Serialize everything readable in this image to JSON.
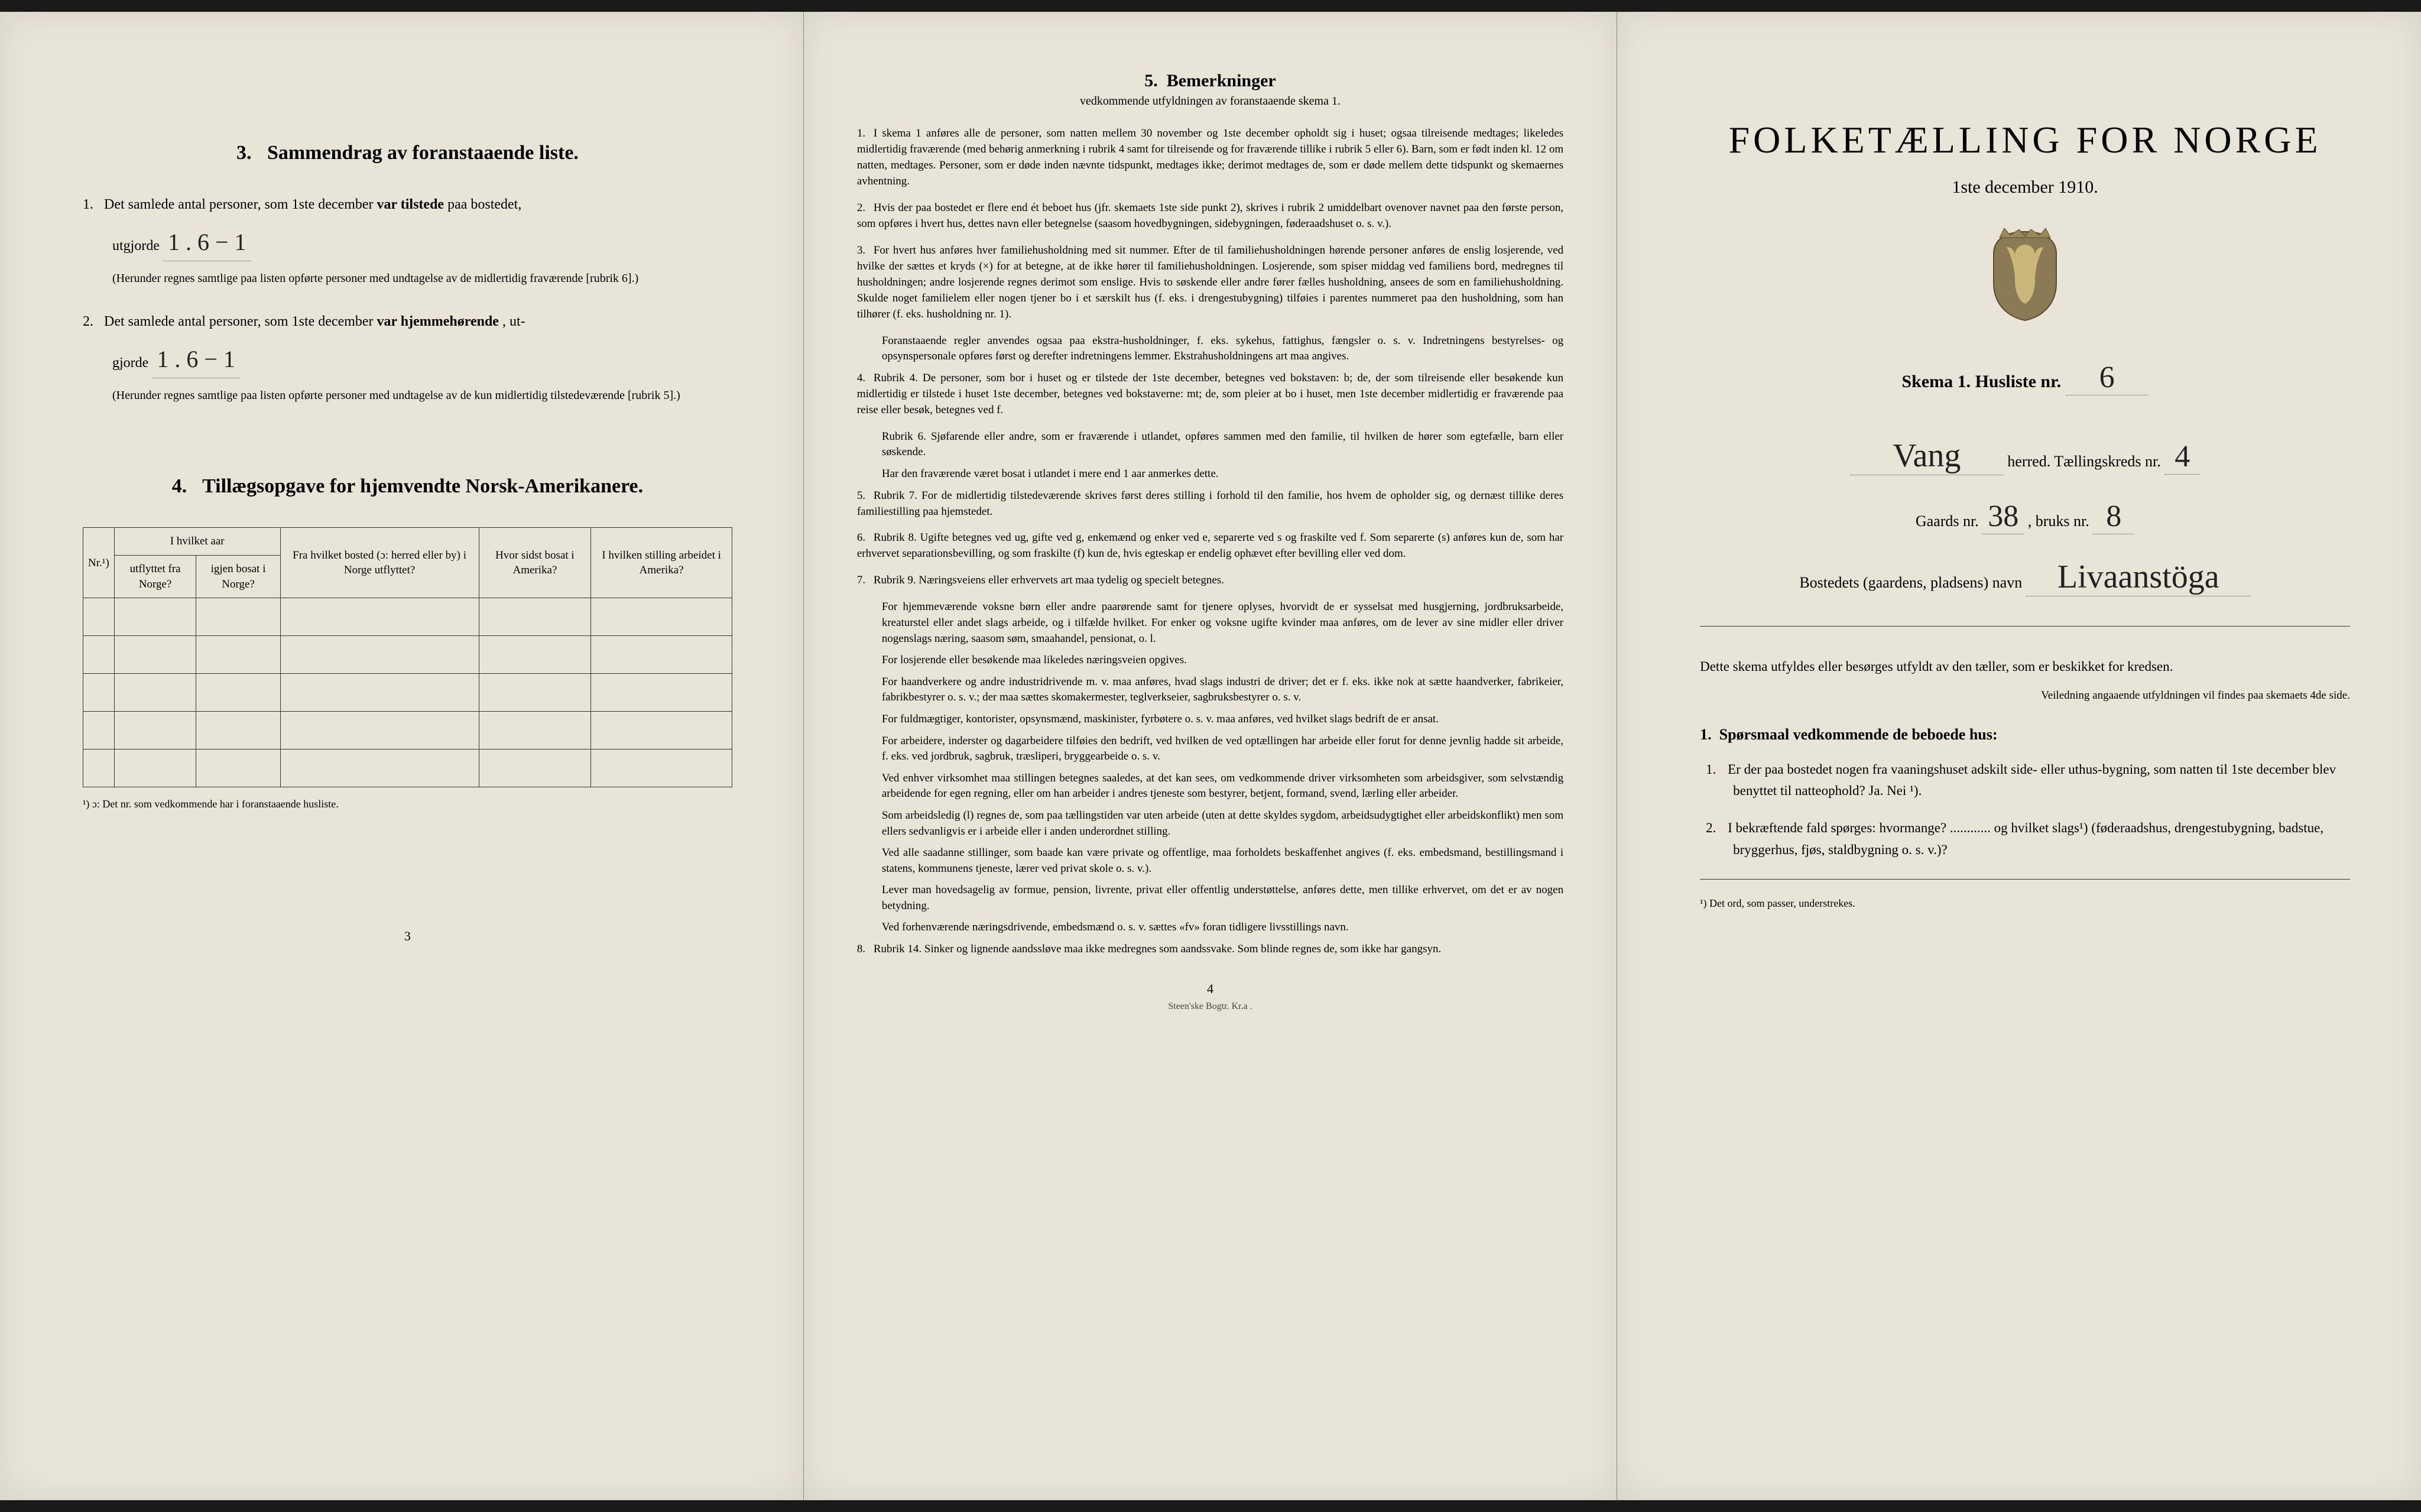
{
  "colors": {
    "paper": "#e8e4d8",
    "ink": "#1a1a1a",
    "border": "#333333",
    "frame": "#1a1a1a"
  },
  "left": {
    "sec3_title": "Sammendrag av foranstaaende liste.",
    "sec3_num": "3.",
    "item1_lead": "Det samlede antal personer, som 1ste december",
    "item1_bold": "var tilstede",
    "item1_tail": "paa bostedet,",
    "item1_utgjorde": "utgjorde",
    "item1_hand": "1 . 6 − 1",
    "item1_fine": "(Herunder regnes samtlige paa listen opførte personer med undtagelse av de midlertidig fraværende [rubrik 6].)",
    "item2_lead": "Det samlede antal personer, som 1ste december",
    "item2_bold": "var hjemmehørende",
    "item2_tail": ", ut-",
    "item2_utgjorde": "gjorde",
    "item2_hand": "1 . 6 − 1",
    "item2_fine": "(Herunder regnes samtlige paa listen opførte personer med undtagelse av de kun midlertidig tilstedeværende [rubrik 5].)",
    "sec4_title": "Tillægsopgave for hjemvendte Norsk-Amerikanere.",
    "sec4_num": "4.",
    "tbl": {
      "h_nr": "Nr.¹)",
      "h_aar": "I hvilket aar",
      "h_utflyttet": "utflyttet fra Norge?",
      "h_igjen": "igjen bosat i Norge?",
      "h_bosted": "Fra hvilket bosted (ɔ: herred eller by) i Norge utflyttet?",
      "h_sidst": "Hvor sidst bosat i Amerika?",
      "h_stilling": "I hvilken stilling arbeidet i Amerika?"
    },
    "tbl_foot": "¹) ɔ: Det nr. som vedkommende har i foranstaaende husliste.",
    "page_num": "3"
  },
  "mid": {
    "title_num": "5.",
    "title": "Bemerkninger",
    "sub": "vedkommende utfyldningen av foranstaaende skema 1.",
    "notes": [
      {
        "n": "1.",
        "t": "I skema 1 anføres alle de personer, som natten mellem 30 november og 1ste december opholdt sig i huset; ogsaa tilreisende medtages; likeledes midlertidig fraværende (med behørig anmerkning i rubrik 4 samt for tilreisende og for fraværende tillike i rubrik 5 eller 6). Barn, som er født inden kl. 12 om natten, medtages. Personer, som er døde inden nævnte tidspunkt, medtages ikke; derimot medtages de, som er døde mellem dette tidspunkt og skemaernes avhentning."
      },
      {
        "n": "2.",
        "t": "Hvis der paa bostedet er flere end ét beboet hus (jfr. skemaets 1ste side punkt 2), skrives i rubrik 2 umiddelbart ovenover navnet paa den første person, som opføres i hvert hus, dettes navn eller betegnelse (saasom hovedbygningen, sidebygningen, føderaadshuset o. s. v.)."
      },
      {
        "n": "3.",
        "t": "For hvert hus anføres hver familiehusholdning med sit nummer. Efter de til familiehusholdningen hørende personer anføres de enslig losjerende, ved hvilke der sættes et kryds (×) for at betegne, at de ikke hører til familiehusholdningen. Losjerende, som spiser middag ved familiens bord, medregnes til husholdningen; andre losjerende regnes derimot som enslige. Hvis to søskende eller andre fører fælles husholdning, ansees de som en familiehusholdning. Skulde noget familielem eller nogen tjener bo i et særskilt hus (f. eks. i drengestubygning) tilføies i parentes nummeret paa den husholdning, som han tilhører (f. eks. husholdning nr. 1)."
      },
      {
        "n": "",
        "t": "Foranstaaende regler anvendes ogsaa paa ekstra-husholdninger, f. eks. sykehus, fattighus, fængsler o. s. v. Indretningens bestyrelses- og opsynspersonale opføres først og derefter indretningens lemmer. Ekstrahusholdningens art maa angives."
      },
      {
        "n": "4.",
        "t": "Rubrik 4. De personer, som bor i huset og er tilstede der 1ste december, betegnes ved bokstaven: b; de, der som tilreisende eller besøkende kun midlertidig er tilstede i huset 1ste december, betegnes ved bokstaverne: mt; de, som pleier at bo i huset, men 1ste december midlertidig er fraværende paa reise eller besøk, betegnes ved f."
      },
      {
        "n": "",
        "t": "Rubrik 6. Sjøfarende eller andre, som er fraværende i utlandet, opføres sammen med den familie, til hvilken de hører som egtefælle, barn eller søskende."
      },
      {
        "n": "",
        "t": "Har den fraværende været bosat i utlandet i mere end 1 aar anmerkes dette."
      },
      {
        "n": "5.",
        "t": "Rubrik 7. For de midlertidig tilstedeværende skrives først deres stilling i forhold til den familie, hos hvem de opholder sig, og dernæst tillike deres familiestilling paa hjemstedet."
      },
      {
        "n": "6.",
        "t": "Rubrik 8. Ugifte betegnes ved ug, gifte ved g, enkemænd og enker ved e, separerte ved s og fraskilte ved f. Som separerte (s) anføres kun de, som har erhvervet separationsbevilling, og som fraskilte (f) kun de, hvis egteskap er endelig ophævet efter bevilling eller ved dom."
      },
      {
        "n": "7.",
        "t": "Rubrik 9. Næringsveiens eller erhvervets art maa tydelig og specielt betegnes."
      },
      {
        "n": "",
        "t": "For hjemmeværende voksne børn eller andre paarørende samt for tjenere oplyses, hvorvidt de er sysselsat med husgjerning, jordbruksarbeide, kreaturstel eller andet slags arbeide, og i tilfælde hvilket. For enker og voksne ugifte kvinder maa anføres, om de lever av sine midler eller driver nogenslags næring, saasom søm, smaahandel, pensionat, o. l."
      },
      {
        "n": "",
        "t": "For losjerende eller besøkende maa likeledes næringsveien opgives."
      },
      {
        "n": "",
        "t": "For haandverkere og andre industridrivende m. v. maa anføres, hvad slags industri de driver; det er f. eks. ikke nok at sætte haandverker, fabrikeier, fabrikbestyrer o. s. v.; der maa sættes skomakermester, teglverkseier, sagbruksbestyrer o. s. v."
      },
      {
        "n": "",
        "t": "For fuldmægtiger, kontorister, opsynsmænd, maskinister, fyrbøtere o. s. v. maa anføres, ved hvilket slags bedrift de er ansat."
      },
      {
        "n": "",
        "t": "For arbeidere, inderster og dagarbeidere tilføies den bedrift, ved hvilken de ved optællingen har arbeide eller forut for denne jevnlig hadde sit arbeide, f. eks. ved jordbruk, sagbruk, træsliperi, bryggearbeide o. s. v."
      },
      {
        "n": "",
        "t": "Ved enhver virksomhet maa stillingen betegnes saaledes, at det kan sees, om vedkommende driver virksomheten som arbeidsgiver, som selvstændig arbeidende for egen regning, eller om han arbeider i andres tjeneste som bestyrer, betjent, formand, svend, lærling eller arbeider."
      },
      {
        "n": "",
        "t": "Som arbeidsledig (l) regnes de, som paa tællingstiden var uten arbeide (uten at dette skyldes sygdom, arbeidsudygtighet eller arbeidskonflikt) men som ellers sedvanligvis er i arbeide eller i anden underordnet stilling."
      },
      {
        "n": "",
        "t": "Ved alle saadanne stillinger, som baade kan være private og offentlige, maa forholdets beskaffenhet angives (f. eks. embedsmand, bestillingsmand i statens, kommunens tjeneste, lærer ved privat skole o. s. v.)."
      },
      {
        "n": "",
        "t": "Lever man hovedsagelig av formue, pension, livrente, privat eller offentlig understøttelse, anføres dette, men tillike erhvervet, om det er av nogen betydning."
      },
      {
        "n": "",
        "t": "Ved forhenværende næringsdrivende, embedsmænd o. s. v. sættes «fv» foran tidligere livsstillings navn."
      },
      {
        "n": "8.",
        "t": "Rubrik 14. Sinker og lignende aandssløve maa ikke medregnes som aandssvake. Som blinde regnes de, som ikke har gangsyn."
      }
    ],
    "page_num": "4",
    "printer": "Steen'ske Bogtr.  Kr.a ."
  },
  "right": {
    "main_title": "FOLKETÆLLING FOR NORGE",
    "date": "1ste december 1910.",
    "skema_lead": "Skema 1.  Husliste nr.",
    "skema_hand": "6",
    "herred_hand": "Vang",
    "herred_tail": "herred.  Tællingskreds nr.",
    "kreds_hand": "4",
    "gaards_lead": "Gaards nr.",
    "gaards_hand": "38",
    "bruks_lead": ", bruks nr.",
    "bruks_hand": "8",
    "bostedet_lead": "Bostedets (gaardens, pladsens) navn",
    "bostedet_hand": "Livaanstöga",
    "instr1": "Dette skema utfyldes eller besørges utfyldt av den tæller, som er beskikket for kredsen.",
    "instr2": "Veiledning angaaende utfyldningen vil findes paa skemaets 4de side.",
    "q_head_num": "1.",
    "q_head": "Spørsmaal vedkommende de beboede hus:",
    "q1_n": "1.",
    "q1": "Er der paa bostedet nogen fra vaaningshuset adskilt side- eller uthus-bygning, som natten til 1ste december blev benyttet til natteophold?  Ja.  Nei ¹).",
    "q2_n": "2.",
    "q2": "I bekræftende fald spørges: hvormange? ............ og hvilket slags¹) (føderaadshus, drengestubygning, badstue, bryggerhus, fjøs, staldbygning o. s. v.)?",
    "foot": "¹) Det ord, som passer, understrekes."
  }
}
